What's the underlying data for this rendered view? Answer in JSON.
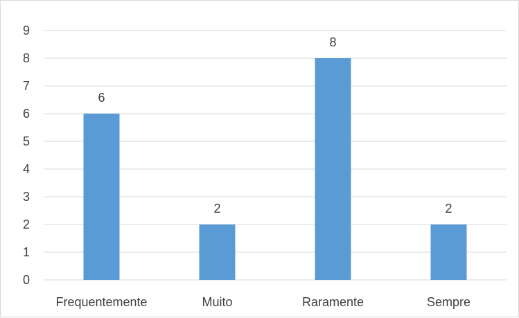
{
  "chart_data": {
    "type": "bar",
    "categories": [
      "Frequentemente",
      "Muito",
      "Raramente",
      "Sempre"
    ],
    "values": [
      6,
      2,
      8,
      2
    ],
    "data_labels": [
      "6",
      "2",
      "8",
      "2"
    ],
    "y_ticks": [
      "0",
      "1",
      "2",
      "3",
      "4",
      "5",
      "6",
      "7",
      "8",
      "9"
    ],
    "ylim": [
      0,
      9
    ],
    "grid": true,
    "legend": "none",
    "title": "",
    "xlabel": "",
    "ylabel": "",
    "bar_color": "#5b9bd5",
    "grid_color": "#d9d9d9"
  }
}
